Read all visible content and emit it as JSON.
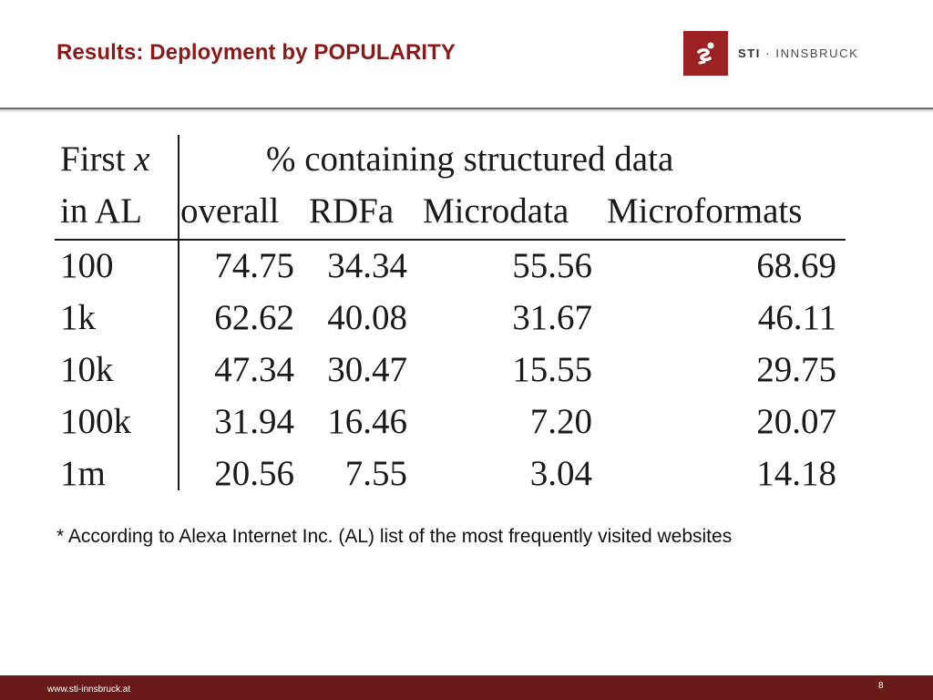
{
  "slide": {
    "title": "Results: Deployment by POPULARITY",
    "logo": {
      "text_strong": "STI",
      "text_rest": "· INNSBRUCK",
      "icon": "sti-logo-icon"
    },
    "footnote": "* According to Alexa Internet Inc. (AL) list of the most frequently visited websites",
    "footer": {
      "url": "www.sti-innsbruck.at",
      "page_number": "8"
    },
    "colors": {
      "title": "#8a1a1a",
      "logo_box": "#9b2223",
      "footer_bar": "#6b1a1a"
    }
  },
  "table": {
    "header_row1": {
      "first_prefix": "First ",
      "first_var": "x",
      "group_label": "% containing structured data"
    },
    "header_row2": [
      "in AL",
      "overall",
      "RDFa",
      "Microdata",
      "Microformats"
    ],
    "rows": [
      [
        "100",
        "74.75",
        "34.34",
        "55.56",
        "68.69"
      ],
      [
        "1k",
        "62.62",
        "40.08",
        "31.67",
        "46.11"
      ],
      [
        "10k",
        "47.34",
        "30.47",
        "15.55",
        "29.75"
      ],
      [
        "100k",
        "31.94",
        "16.46",
        "7.20",
        "20.07"
      ],
      [
        "1m",
        "20.56",
        "7.55",
        "3.04",
        "14.18"
      ]
    ]
  }
}
